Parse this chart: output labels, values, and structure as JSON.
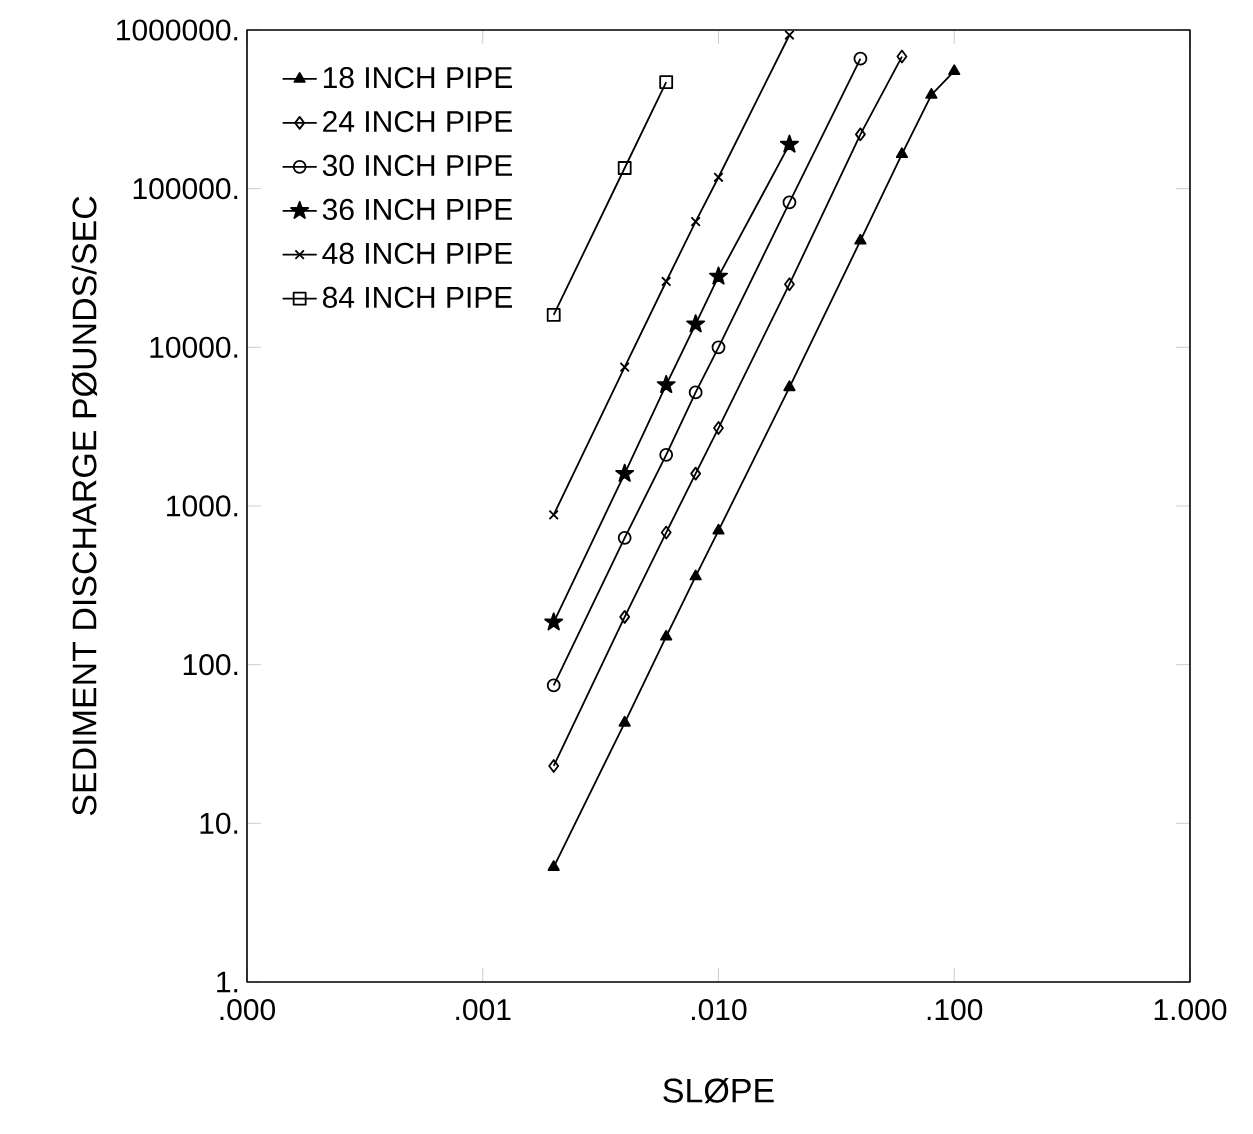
{
  "chart_data": {
    "type": "line",
    "xlabel": "SLØPE",
    "ylabel": "SEDIMENT  DISCHARGE  PØUNDS/SEC",
    "log": "xy",
    "grid": false,
    "legend": "top left",
    "xlim": [
      0.0001,
      1
    ],
    "ylim": [
      1,
      1000000
    ],
    "xticks": [
      {
        "value": 0.0001,
        "label": ".000"
      },
      {
        "value": 0.001,
        "label": ".001"
      },
      {
        "value": 0.01,
        "label": ".010"
      },
      {
        "value": 0.1,
        "label": ".100"
      },
      {
        "value": 1,
        "label": "1.000"
      }
    ],
    "yticks": [
      {
        "value": 1,
        "label": "1."
      },
      {
        "value": 10,
        "label": "10."
      },
      {
        "value": 100,
        "label": "100."
      },
      {
        "value": 1000,
        "label": "1000."
      },
      {
        "value": 10000,
        "label": "10000."
      },
      {
        "value": 100000,
        "label": "100000."
      },
      {
        "value": 1000000,
        "label": "1000000."
      }
    ],
    "series": [
      {
        "name": "18 INCH PIPE",
        "color": "#000000",
        "marker": "triangle",
        "x": [
          0.002,
          0.004,
          0.006,
          0.008,
          0.01,
          0.02,
          0.04,
          0.06,
          0.08,
          0.1
        ],
        "values": [
          5.3,
          43,
          150,
          360,
          700,
          5600,
          47000,
          165000,
          390000,
          550000
        ]
      },
      {
        "name": "24 INCH PIPE",
        "color": "#000000",
        "marker": "diamond",
        "x": [
          0.002,
          0.004,
          0.006,
          0.008,
          0.01,
          0.02,
          0.04,
          0.06
        ],
        "values": [
          23,
          200,
          680,
          1600,
          3100,
          25000,
          220000,
          680000
        ]
      },
      {
        "name": "30 INCH PIPE",
        "color": "#000000",
        "marker": "circle",
        "x": [
          0.002,
          0.004,
          0.006,
          0.008,
          0.01,
          0.02,
          0.04
        ],
        "values": [
          74,
          630,
          2100,
          5200,
          10000,
          82000,
          660000
        ]
      },
      {
        "name": "36 INCH PIPE",
        "color": "#000000",
        "marker": "star",
        "x": [
          0.002,
          0.004,
          0.006,
          0.008,
          0.01,
          0.02
        ],
        "values": [
          185,
          1600,
          5800,
          14000,
          28000,
          190000
        ]
      },
      {
        "name": "48 INCH PIPE",
        "color": "#000000",
        "marker": "cross",
        "x": [
          0.002,
          0.004,
          0.006,
          0.008,
          0.01,
          0.02
        ],
        "values": [
          880,
          7500,
          26000,
          62000,
          118000,
          930000
        ]
      },
      {
        "name": "84 INCH PIPE",
        "color": "#000000",
        "marker": "square",
        "x": [
          0.002,
          0.004,
          0.006
        ],
        "values": [
          16000,
          135000,
          470000
        ]
      }
    ]
  }
}
